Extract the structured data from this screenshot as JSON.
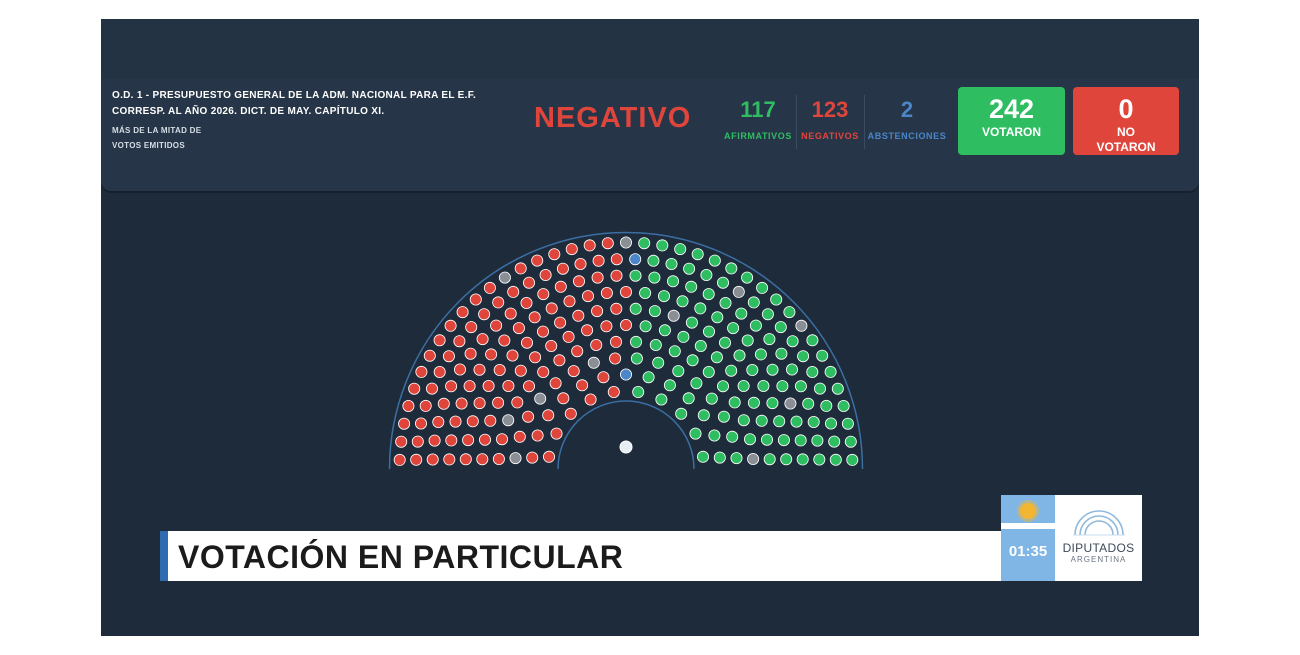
{
  "vote": {
    "title_line1": "O.D. 1 - PRESUPUESTO GENERAL DE LA ADM. NACIONAL PARA EL E.F.",
    "title_line2": "CORRESP. AL AÑO 2026. DICT. DE MAY. CAPÍTULO XI.",
    "majority_line1": "MÁS DE LA MITAD DE",
    "majority_line2": "VOTOS EMITIDOS",
    "result": "NEGATIVO",
    "afirmativos": {
      "value": "117",
      "label": "AFIRMATIVOS"
    },
    "negativos": {
      "value": "123",
      "label": "NEGATIVOS"
    },
    "abstenciones": {
      "value": "2",
      "label": "ABSTENCIONES"
    },
    "votaron": {
      "value": "242",
      "label": "VOTARON"
    },
    "no_votaron": {
      "value": "0",
      "label_line1": "NO",
      "label_line2": "VOTARON"
    }
  },
  "banner": {
    "text": "VOTACIÓN EN PARTICULAR"
  },
  "branding": {
    "timer": "01:35",
    "name": "DIPUTADOS",
    "country": "ARGENTINA"
  },
  "colors": {
    "afirmativo": "#2fbd62",
    "negativo": "#e0453c",
    "abstencion": "#4a86c8",
    "ausente": "#8a8f96",
    "presidente": "#e8eef5"
  },
  "seats": {
    "afirmativos": 117,
    "negativos": 123,
    "abstenciones": 2
  }
}
